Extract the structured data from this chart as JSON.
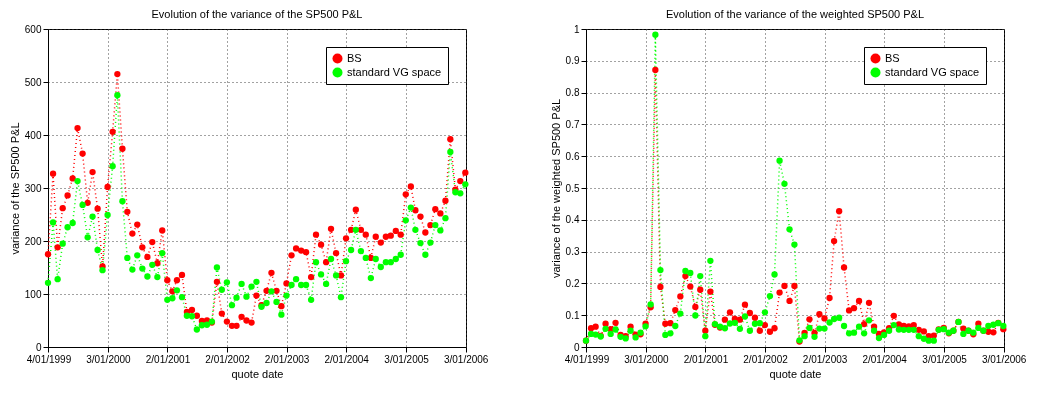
{
  "chart_data": [
    {
      "type": "line",
      "title": "Evolution of the variance of the SP500 P&L",
      "xlabel": "quote date",
      "ylabel": "variance of the SP500 P&L",
      "x": [
        "1999-01",
        "1999-02",
        "1999-03",
        "1999-04",
        "1999-05",
        "1999-06",
        "1999-07",
        "1999-08",
        "1999-09",
        "1999-10",
        "1999-11",
        "1999-12",
        "2000-01",
        "2000-02",
        "2000-03",
        "2000-04",
        "2000-05",
        "2000-06",
        "2000-07",
        "2000-08",
        "2000-09",
        "2000-10",
        "2000-11",
        "2000-12",
        "2001-01",
        "2001-02",
        "2001-03",
        "2001-04",
        "2001-05",
        "2001-06",
        "2001-07",
        "2001-08",
        "2001-09",
        "2001-10",
        "2001-11",
        "2001-12",
        "2002-01",
        "2002-02",
        "2002-03",
        "2002-04",
        "2002-05",
        "2002-06",
        "2002-07",
        "2002-08",
        "2002-09",
        "2002-10",
        "2002-11",
        "2002-12",
        "2003-01",
        "2003-02",
        "2003-03",
        "2003-04",
        "2003-05",
        "2003-06",
        "2003-07",
        "2003-08",
        "2003-09",
        "2003-10",
        "2003-11",
        "2003-12",
        "2004-01",
        "2004-02",
        "2004-03",
        "2004-04",
        "2004-05",
        "2004-06",
        "2004-07",
        "2004-08",
        "2004-09",
        "2004-10",
        "2004-11",
        "2004-12",
        "2005-01",
        "2005-02",
        "2005-03",
        "2005-04",
        "2005-05",
        "2005-06",
        "2005-07",
        "2005-08",
        "2005-09",
        "2005-10",
        "2005-11",
        "2005-12",
        "2006-01"
      ],
      "xlim": [
        "1999-01-01",
        "2006-01-05"
      ],
      "xticks": [
        {
          "value": "1999-01-04",
          "label": "4/01/1999"
        },
        {
          "value": "2000-01-03",
          "label": "3/01/2000"
        },
        {
          "value": "2001-01-02",
          "label": "2/01/2001"
        },
        {
          "value": "2002-01-02",
          "label": "2/01/2002"
        },
        {
          "value": "2003-01-02",
          "label": "2/01/2003"
        },
        {
          "value": "2004-01-02",
          "label": "2/01/2004"
        },
        {
          "value": "2005-01-03",
          "label": "3/01/2005"
        },
        {
          "value": "2006-01-03",
          "label": "3/01/2006"
        }
      ],
      "ylim": [
        0,
        600
      ],
      "yticks": [
        0,
        100,
        200,
        300,
        400,
        500,
        600
      ],
      "series": [
        {
          "name": "BS",
          "color": "#ff0000",
          "values": [
            175,
            327,
            188,
            262,
            286,
            318,
            413,
            365,
            272,
            330,
            261,
            152,
            302,
            406,
            515,
            374,
            255,
            214,
            231,
            188,
            170,
            198,
            158,
            220,
            126,
            105,
            126,
            136,
            66,
            70,
            59,
            49,
            50,
            46,
            123,
            63,
            48,
            40,
            40,
            57,
            50,
            46,
            97,
            79,
            106,
            140,
            106,
            77,
            120,
            173,
            186,
            182,
            179,
            132,
            212,
            193,
            160,
            223,
            177,
            135,
            205,
            221,
            259,
            221,
            212,
            168,
            208,
            197,
            208,
            210,
            219,
            212,
            288,
            303,
            258,
            246,
            216,
            230,
            260,
            252,
            276,
            392,
            297,
            313,
            329
          ]
        },
        {
          "name": "standard VG space",
          "color": "#00ff00",
          "values": [
            121,
            235,
            128,
            195,
            226,
            234,
            313,
            268,
            207,
            246,
            183,
            145,
            249,
            341,
            475,
            275,
            168,
            146,
            173,
            148,
            133,
            155,
            132,
            177,
            89,
            92,
            107,
            94,
            59,
            58,
            33,
            41,
            42,
            48,
            150,
            108,
            122,
            79,
            93,
            119,
            95,
            114,
            123,
            76,
            83,
            105,
            85,
            61,
            97,
            117,
            128,
            117,
            117,
            89,
            160,
            137,
            119,
            166,
            135,
            94,
            162,
            183,
            221,
            181,
            168,
            130,
            166,
            151,
            160,
            160,
            166,
            174,
            239,
            263,
            221,
            196,
            174,
            197,
            230,
            220,
            243,
            368,
            292,
            290,
            307
          ]
        }
      ],
      "marker": "circle",
      "line_style": "dotted",
      "grid": true,
      "legend": "top right"
    },
    {
      "type": "line",
      "title": "Evolution of the variance of the weighted SP500 P&L",
      "xlabel": "quote date",
      "ylabel": "variance of the weighted SP500 P&L",
      "x": [
        "1999-01",
        "1999-02",
        "1999-03",
        "1999-04",
        "1999-05",
        "1999-06",
        "1999-07",
        "1999-08",
        "1999-09",
        "1999-10",
        "1999-11",
        "1999-12",
        "2000-01",
        "2000-02",
        "2000-03",
        "2000-04",
        "2000-05",
        "2000-06",
        "2000-07",
        "2000-08",
        "2000-09",
        "2000-10",
        "2000-11",
        "2000-12",
        "2001-01",
        "2001-02",
        "2001-03",
        "2001-04",
        "2001-05",
        "2001-06",
        "2001-07",
        "2001-08",
        "2001-09",
        "2001-10",
        "2001-11",
        "2001-12",
        "2002-01",
        "2002-02",
        "2002-03",
        "2002-04",
        "2002-05",
        "2002-06",
        "2002-07",
        "2002-08",
        "2002-09",
        "2002-10",
        "2002-11",
        "2002-12",
        "2003-01",
        "2003-02",
        "2003-03",
        "2003-04",
        "2003-05",
        "2003-06",
        "2003-07",
        "2003-08",
        "2003-09",
        "2003-10",
        "2003-11",
        "2003-12",
        "2004-01",
        "2004-02",
        "2004-03",
        "2004-04",
        "2004-05",
        "2004-06",
        "2004-07",
        "2004-08",
        "2004-09",
        "2004-10",
        "2004-11",
        "2004-12",
        "2005-01",
        "2005-02",
        "2005-03",
        "2005-04",
        "2005-05",
        "2005-06",
        "2005-07",
        "2005-08",
        "2005-09",
        "2005-10",
        "2005-11",
        "2005-12",
        "2006-01"
      ],
      "xlim": [
        "1999-01-01",
        "2006-01-05"
      ],
      "xticks": [
        {
          "value": "1999-01-04",
          "label": "4/01/1999"
        },
        {
          "value": "2000-01-03",
          "label": "3/01/2000"
        },
        {
          "value": "2001-01-02",
          "label": "2/01/2001"
        },
        {
          "value": "2002-01-02",
          "label": "2/01/2002"
        },
        {
          "value": "2003-01-02",
          "label": "2/01/2003"
        },
        {
          "value": "2004-01-02",
          "label": "2/01/2004"
        },
        {
          "value": "2005-01-03",
          "label": "3/01/2005"
        },
        {
          "value": "2006-01-03",
          "label": "3/01/2006"
        }
      ],
      "ylim": [
        0,
        1
      ],
      "yticks": [
        0,
        0.1,
        0.2,
        0.3,
        0.4,
        0.5,
        0.6,
        0.7,
        0.8,
        0.9,
        1
      ],
      "series": [
        {
          "name": "BS",
          "color": "#ff0000",
          "values": [
            0.02,
            0.059,
            0.064,
            0.035,
            0.073,
            0.056,
            0.076,
            0.038,
            0.034,
            0.064,
            0.039,
            0.04,
            0.073,
            0.125,
            0.871,
            0.189,
            0.073,
            0.075,
            0.116,
            0.159,
            0.223,
            0.19,
            0.126,
            0.18,
            0.051,
            0.174,
            0.07,
            0.061,
            0.086,
            0.109,
            0.088,
            0.086,
            0.133,
            0.107,
            0.092,
            0.051,
            0.069,
            0.048,
            0.059,
            0.171,
            0.192,
            0.145,
            0.192,
            0.017,
            0.044,
            0.087,
            0.044,
            0.103,
            0.09,
            0.154,
            0.333,
            0.427,
            0.25,
            0.115,
            0.122,
            0.145,
            0.072,
            0.139,
            0.064,
            0.041,
            0.046,
            0.059,
            0.098,
            0.071,
            0.066,
            0.065,
            0.069,
            0.054,
            0.049,
            0.034,
            0.036,
            0.055,
            0.06,
            0.043,
            0.051,
            0.079,
            0.058,
            0.051,
            0.04,
            0.073,
            0.051,
            0.048,
            0.046,
            0.076,
            0.056
          ]
        },
        {
          "name": "standard VG space",
          "color": "#00ff00",
          "values": [
            0.02,
            0.041,
            0.039,
            0.033,
            0.057,
            0.041,
            0.055,
            0.032,
            0.027,
            0.051,
            0.03,
            0.045,
            0.065,
            0.134,
            0.982,
            0.242,
            0.038,
            0.043,
            0.066,
            0.105,
            0.239,
            0.233,
            0.099,
            0.223,
            0.034,
            0.271,
            0.072,
            0.064,
            0.059,
            0.074,
            0.076,
            0.057,
            0.096,
            0.051,
            0.073,
            0.075,
            0.109,
            0.16,
            0.228,
            0.586,
            0.513,
            0.37,
            0.322,
            0.021,
            0.034,
            0.06,
            0.032,
            0.058,
            0.058,
            0.077,
            0.088,
            0.092,
            0.066,
            0.043,
            0.045,
            0.064,
            0.043,
            0.084,
            0.051,
            0.028,
            0.038,
            0.051,
            0.069,
            0.055,
            0.054,
            0.054,
            0.054,
            0.034,
            0.026,
            0.02,
            0.02,
            0.054,
            0.056,
            0.045,
            0.051,
            0.079,
            0.041,
            0.051,
            0.045,
            0.06,
            0.051,
            0.066,
            0.07,
            0.075,
            0.066
          ]
        }
      ],
      "marker": "circle",
      "line_style": "dotted",
      "grid": true,
      "legend": "top right"
    }
  ]
}
